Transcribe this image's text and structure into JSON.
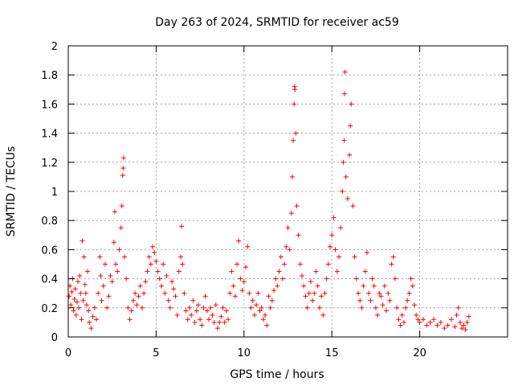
{
  "chart_data": {
    "type": "scatter",
    "title": "Day 263 of 2024, SRMTID for receiver ac59",
    "xlabel": "GPS time / hours",
    "ylabel": "SRMTID / TECUs",
    "xlim": [
      0,
      25
    ],
    "ylim": [
      0,
      2
    ],
    "xticks": [
      0,
      5,
      10,
      15,
      20
    ],
    "xtick_labels": [
      "0",
      "5",
      "10",
      "15",
      "20"
    ],
    "yticks": [
      0,
      0.2,
      0.4,
      0.6,
      0.8,
      1,
      1.2,
      1.4,
      1.6,
      1.8,
      2
    ],
    "ytick_labels": [
      "0",
      "0.2",
      "0.4",
      "0.6",
      "0.8",
      "1",
      "1.2",
      "1.4",
      "1.6",
      "1.8",
      "2"
    ],
    "grid": true,
    "marker": "+",
    "color": "#ff0000",
    "series": [
      {
        "name": "SRMTID",
        "points": [
          [
            0.05,
            0.28
          ],
          [
            0.1,
            0.35
          ],
          [
            0.15,
            0.22
          ],
          [
            0.2,
            0.31
          ],
          [
            0.25,
            0.4
          ],
          [
            0.3,
            0.18
          ],
          [
            0.35,
            0.26
          ],
          [
            0.4,
            0.33
          ],
          [
            0.45,
            0.15
          ],
          [
            0.5,
            0.24
          ],
          [
            0.55,
            0.38
          ],
          [
            0.6,
            0.2
          ],
          [
            0.65,
            0.42
          ],
          [
            0.7,
            0.3
          ],
          [
            0.75,
            0.12
          ],
          [
            0.8,
            0.66
          ],
          [
            0.85,
            0.25
          ],
          [
            0.9,
            0.55
          ],
          [
            0.95,
            0.36
          ],
          [
            1.0,
            0.3
          ],
          [
            1.05,
            0.22
          ],
          [
            1.1,
            0.45
          ],
          [
            1.15,
            0.18
          ],
          [
            1.2,
            0.1
          ],
          [
            1.3,
            0.06
          ],
          [
            1.4,
            0.14
          ],
          [
            1.5,
            0.2
          ],
          [
            1.6,
            0.12
          ],
          [
            1.7,
            0.3
          ],
          [
            1.8,
            0.55
          ],
          [
            1.85,
            0.42
          ],
          [
            1.9,
            0.25
          ],
          [
            2.0,
            0.35
          ],
          [
            2.1,
            0.5
          ],
          [
            2.2,
            0.2
          ],
          [
            2.3,
            0.28
          ],
          [
            2.4,
            0.42
          ],
          [
            2.5,
            0.38
          ],
          [
            2.6,
            0.65
          ],
          [
            2.65,
            0.86
          ],
          [
            2.7,
            0.5
          ],
          [
            2.8,
            0.45
          ],
          [
            2.9,
            0.6
          ],
          [
            3.0,
            0.75
          ],
          [
            3.05,
            0.9
          ],
          [
            3.1,
            1.11
          ],
          [
            3.12,
            1.16
          ],
          [
            3.15,
            1.23
          ],
          [
            3.2,
            0.55
          ],
          [
            3.3,
            0.4
          ],
          [
            3.4,
            0.2
          ],
          [
            3.5,
            0.12
          ],
          [
            3.6,
            0.18
          ],
          [
            3.7,
            0.25
          ],
          [
            3.8,
            0.3
          ],
          [
            3.9,
            0.22
          ],
          [
            4.0,
            0.28
          ],
          [
            4.1,
            0.35
          ],
          [
            4.2,
            0.2
          ],
          [
            4.3,
            0.3
          ],
          [
            4.4,
            0.38
          ],
          [
            4.5,
            0.45
          ],
          [
            4.6,
            0.55
          ],
          [
            4.7,
            0.5
          ],
          [
            4.8,
            0.62
          ],
          [
            4.9,
            0.58
          ],
          [
            5.0,
            0.52
          ],
          [
            5.1,
            0.45
          ],
          [
            5.2,
            0.4
          ],
          [
            5.3,
            0.35
          ],
          [
            5.4,
            0.5
          ],
          [
            5.5,
            0.3
          ],
          [
            5.6,
            0.42
          ],
          [
            5.7,
            0.25
          ],
          [
            5.8,
            0.2
          ],
          [
            5.9,
            0.38
          ],
          [
            6.0,
            0.33
          ],
          [
            6.1,
            0.28
          ],
          [
            6.2,
            0.15
          ],
          [
            6.3,
            0.45
          ],
          [
            6.4,
            0.55
          ],
          [
            6.45,
            0.76
          ],
          [
            6.5,
            0.5
          ],
          [
            6.6,
            0.3
          ],
          [
            6.7,
            0.18
          ],
          [
            6.8,
            0.12
          ],
          [
            6.9,
            0.2
          ],
          [
            7.0,
            0.15
          ],
          [
            7.1,
            0.25
          ],
          [
            7.2,
            0.1
          ],
          [
            7.3,
            0.18
          ],
          [
            7.4,
            0.22
          ],
          [
            7.5,
            0.12
          ],
          [
            7.6,
            0.08
          ],
          [
            7.7,
            0.2
          ],
          [
            7.8,
            0.28
          ],
          [
            7.9,
            0.18
          ],
          [
            8.0,
            0.12
          ],
          [
            8.1,
            0.2
          ],
          [
            8.2,
            0.15
          ],
          [
            8.3,
            0.1
          ],
          [
            8.4,
            0.22
          ],
          [
            8.5,
            0.06
          ],
          [
            8.6,
            0.1
          ],
          [
            8.7,
            0.14
          ],
          [
            8.8,
            0.2
          ],
          [
            8.9,
            0.1
          ],
          [
            9.0,
            0.18
          ],
          [
            9.1,
            0.12
          ],
          [
            9.2,
            0.3
          ],
          [
            9.3,
            0.45
          ],
          [
            9.4,
            0.35
          ],
          [
            9.5,
            0.28
          ],
          [
            9.6,
            0.5
          ],
          [
            9.7,
            0.66
          ],
          [
            9.8,
            0.4
          ],
          [
            9.9,
            0.32
          ],
          [
            10.0,
            0.38
          ],
          [
            10.1,
            0.48
          ],
          [
            10.2,
            0.62
          ],
          [
            10.3,
            0.3
          ],
          [
            10.4,
            0.2
          ],
          [
            10.5,
            0.25
          ],
          [
            10.6,
            0.15
          ],
          [
            10.7,
            0.22
          ],
          [
            10.8,
            0.3
          ],
          [
            10.9,
            0.18
          ],
          [
            11.0,
            0.2
          ],
          [
            11.1,
            0.12
          ],
          [
            11.2,
            0.15
          ],
          [
            11.3,
            0.08
          ],
          [
            11.4,
            0.28
          ],
          [
            11.5,
            0.2
          ],
          [
            11.6,
            0.25
          ],
          [
            11.7,
            0.32
          ],
          [
            11.8,
            0.4
          ],
          [
            11.9,
            0.35
          ],
          [
            12.0,
            0.45
          ],
          [
            12.1,
            0.55
          ],
          [
            12.2,
            0.4
          ],
          [
            12.3,
            0.5
          ],
          [
            12.4,
            0.62
          ],
          [
            12.5,
            0.75
          ],
          [
            12.6,
            0.6
          ],
          [
            12.7,
            0.85
          ],
          [
            12.75,
            1.1
          ],
          [
            12.8,
            1.35
          ],
          [
            12.85,
            1.6
          ],
          [
            12.88,
            1.72
          ],
          [
            12.9,
            1.7
          ],
          [
            12.95,
            1.4
          ],
          [
            13.0,
            0.9
          ],
          [
            13.1,
            0.7
          ],
          [
            13.2,
            0.5
          ],
          [
            13.3,
            0.42
          ],
          [
            13.4,
            0.35
          ],
          [
            13.5,
            0.28
          ],
          [
            13.6,
            0.2
          ],
          [
            13.7,
            0.3
          ],
          [
            13.8,
            0.38
          ],
          [
            13.9,
            0.25
          ],
          [
            14.0,
            0.3
          ],
          [
            14.1,
            0.45
          ],
          [
            14.2,
            0.35
          ],
          [
            14.3,
            0.2
          ],
          [
            14.4,
            0.28
          ],
          [
            14.5,
            0.15
          ],
          [
            14.6,
            0.3
          ],
          [
            14.7,
            0.4
          ],
          [
            14.8,
            0.5
          ],
          [
            14.9,
            0.62
          ],
          [
            15.0,
            0.7
          ],
          [
            15.1,
            0.82
          ],
          [
            15.2,
            0.6
          ],
          [
            15.3,
            0.45
          ],
          [
            15.4,
            0.55
          ],
          [
            15.5,
            0.75
          ],
          [
            15.6,
            1.0
          ],
          [
            15.65,
            1.2
          ],
          [
            15.7,
            1.35
          ],
          [
            15.72,
            1.67
          ],
          [
            15.75,
            1.82
          ],
          [
            15.8,
            1.1
          ],
          [
            15.9,
            0.95
          ],
          [
            16.0,
            1.25
          ],
          [
            16.05,
            1.45
          ],
          [
            16.1,
            1.6
          ],
          [
            16.2,
            0.9
          ],
          [
            16.3,
            0.55
          ],
          [
            16.4,
            0.4
          ],
          [
            16.5,
            0.3
          ],
          [
            16.6,
            0.25
          ],
          [
            16.7,
            0.2
          ],
          [
            16.8,
            0.35
          ],
          [
            16.9,
            0.45
          ],
          [
            17.0,
            0.58
          ],
          [
            17.1,
            0.3
          ],
          [
            17.2,
            0.25
          ],
          [
            17.3,
            0.4
          ],
          [
            17.4,
            0.35
          ],
          [
            17.5,
            0.2
          ],
          [
            17.6,
            0.15
          ],
          [
            17.7,
            0.3
          ],
          [
            17.8,
            0.28
          ],
          [
            17.9,
            0.22
          ],
          [
            18.0,
            0.35
          ],
          [
            18.1,
            0.18
          ],
          [
            18.2,
            0.3
          ],
          [
            18.3,
            0.25
          ],
          [
            18.4,
            0.5
          ],
          [
            18.5,
            0.55
          ],
          [
            18.6,
            0.4
          ],
          [
            18.7,
            0.2
          ],
          [
            18.8,
            0.12
          ],
          [
            18.9,
            0.08
          ],
          [
            19.0,
            0.15
          ],
          [
            19.1,
            0.1
          ],
          [
            19.2,
            0.2
          ],
          [
            19.3,
            0.25
          ],
          [
            19.4,
            0.3
          ],
          [
            19.5,
            0.4
          ],
          [
            19.6,
            0.35
          ],
          [
            19.7,
            0.22
          ],
          [
            19.8,
            0.15
          ],
          [
            19.9,
            0.12
          ],
          [
            20.0,
            0.1
          ],
          [
            20.2,
            0.12
          ],
          [
            20.4,
            0.08
          ],
          [
            20.6,
            0.1
          ],
          [
            20.8,
            0.12
          ],
          [
            21.0,
            0.08
          ],
          [
            21.2,
            0.1
          ],
          [
            21.4,
            0.06
          ],
          [
            21.6,
            0.08
          ],
          [
            21.8,
            0.12
          ],
          [
            22.0,
            0.07
          ],
          [
            22.1,
            0.15
          ],
          [
            22.2,
            0.2
          ],
          [
            22.3,
            0.1
          ],
          [
            22.4,
            0.06
          ],
          [
            22.5,
            0.08
          ],
          [
            22.6,
            0.05
          ],
          [
            22.7,
            0.1
          ],
          [
            22.8,
            0.14
          ]
        ]
      }
    ]
  }
}
